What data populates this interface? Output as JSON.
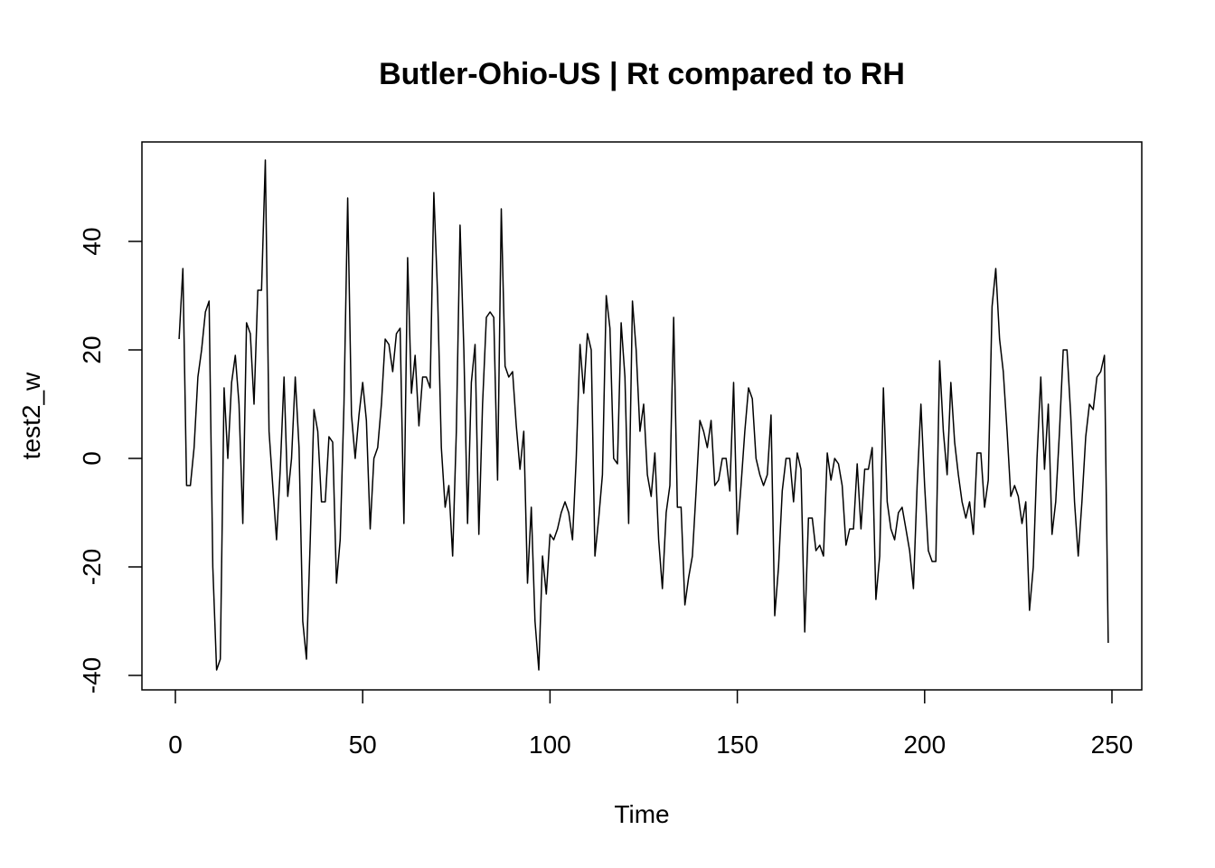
{
  "chart_data": {
    "type": "line",
    "title": "Butler-Ohio-US | Rt compared to RH",
    "xlabel": "Time",
    "ylabel": "test2_w",
    "xlim": [
      1,
      248
    ],
    "ylim": [
      -40,
      55
    ],
    "x_ticks": [
      0,
      50,
      100,
      150,
      200,
      250
    ],
    "y_ticks": [
      -40,
      -20,
      0,
      20,
      40
    ],
    "grid": false,
    "legend": "none",
    "line_color": "#000000",
    "series": [
      {
        "x_start": 1,
        "x_step": 1,
        "values": [
          22,
          35,
          -5,
          -5,
          2,
          15,
          20,
          27,
          29,
          -20,
          -39,
          -37,
          13,
          0,
          14,
          19,
          10,
          -12,
          25,
          23,
          10,
          31,
          31,
          55,
          5,
          -5,
          -15,
          -2,
          15,
          -7,
          0,
          15,
          2,
          -30,
          -37,
          -15,
          9,
          5,
          -8,
          -8,
          4,
          3,
          -23,
          -15,
          10,
          48,
          8,
          0,
          8,
          14,
          7,
          -13,
          0,
          2,
          10,
          22,
          21,
          16,
          23,
          24,
          -12,
          37,
          12,
          19,
          6,
          15,
          15,
          13,
          49,
          30,
          2,
          -9,
          -5,
          -18,
          5,
          43,
          20,
          -12,
          14,
          21,
          -14,
          10,
          26,
          27,
          26,
          -4,
          46,
          17,
          15,
          16,
          6,
          -2,
          5,
          -23,
          -9,
          -30,
          -39,
          -18,
          -25,
          -14,
          -15,
          -13,
          -10,
          -8,
          -10,
          -15,
          0,
          21,
          12,
          23,
          20,
          -18,
          -11,
          -3,
          30,
          24,
          0,
          -1,
          25,
          15,
          -12,
          29,
          20,
          5,
          10,
          -3,
          -7,
          1,
          -15,
          -24,
          -10,
          -5,
          26,
          -9,
          -9,
          -27,
          -22,
          -18,
          -6,
          7,
          5,
          2,
          7,
          -5,
          -4,
          0,
          0,
          -6,
          14,
          -14,
          -5,
          5,
          13,
          11,
          0,
          -3,
          -5,
          -3,
          8,
          -29,
          -20,
          -6,
          0,
          0,
          -8,
          1,
          -2,
          -32,
          -11,
          -11,
          -17,
          -16,
          -18,
          1,
          -4,
          0,
          -1,
          -5,
          -16,
          -13,
          -13,
          -1,
          -13,
          -2,
          -2,
          2,
          -26,
          -18,
          13,
          -8,
          -13,
          -15,
          -10,
          -9,
          -13,
          -17,
          -24,
          -5,
          10,
          -5,
          -17,
          -19,
          -19,
          18,
          5,
          -3,
          14,
          3,
          -3,
          -8,
          -11,
          -8,
          -14,
          1,
          1,
          -9,
          -4,
          28,
          35,
          22,
          16,
          5,
          -7,
          -5,
          -7,
          -12,
          -8,
          -28,
          -20,
          0,
          15,
          -2,
          10,
          -14,
          -8,
          5,
          20,
          20,
          8,
          -8,
          -18,
          -8,
          4,
          10,
          9,
          15,
          16,
          19,
          -34
        ]
      }
    ]
  }
}
